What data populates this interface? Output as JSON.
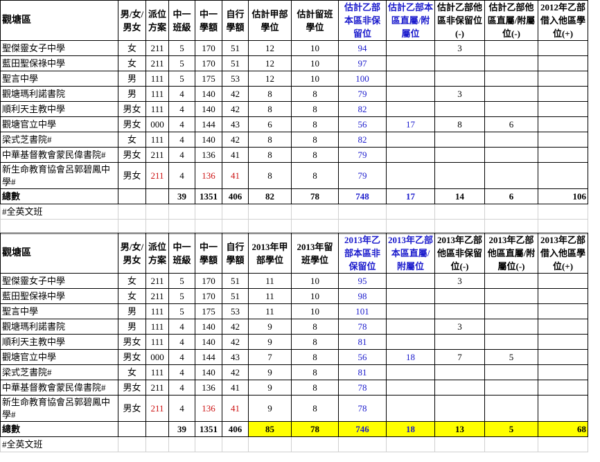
{
  "colors": {
    "blue": "#1a1acc",
    "red": "#cc1111",
    "highlight": "#ffff00"
  },
  "tables": [
    {
      "headers": [
        "觀塘區",
        "男/女/男女",
        "派位方案",
        "中一班級",
        "中一學額",
        "自行學額",
        "估計甲部學位",
        "估計留班學位",
        "估計乙部本區非保留位",
        "估計乙部本區直屬/附屬位",
        "估計乙部他區非保留位(-)",
        "估計乙部他區直屬/附屬位(-)",
        "2012年乙部借入他區學位(+)"
      ],
      "rows": [
        [
          "聖傑靈女子中學",
          "女",
          "211",
          "5",
          "170",
          "51",
          "12",
          "10",
          "94",
          "",
          "3",
          "",
          ""
        ],
        [
          "藍田聖保祿中學",
          "女",
          "211",
          "5",
          "170",
          "51",
          "12",
          "10",
          "97",
          "",
          "",
          "",
          ""
        ],
        [
          "聖言中學",
          "男",
          "111",
          "5",
          "175",
          "53",
          "12",
          "10",
          "100",
          "",
          "",
          "",
          ""
        ],
        [
          "觀塘瑪利諾書院",
          "男",
          "111",
          "4",
          "140",
          "42",
          "8",
          "8",
          "79",
          "",
          "3",
          "",
          ""
        ],
        [
          "順利天主教中學",
          "男女",
          "111",
          "4",
          "140",
          "42",
          "8",
          "8",
          "82",
          "",
          "",
          "",
          ""
        ],
        [
          "觀塘官立中學",
          "男女",
          "000",
          "4",
          "144",
          "43",
          "6",
          "8",
          "56",
          "17",
          "8",
          "6",
          ""
        ],
        [
          "梁式芝書院#",
          "女",
          "111",
          "4",
          "140",
          "42",
          "8",
          "8",
          "82",
          "",
          "",
          "",
          ""
        ],
        [
          "中華基督教會蒙民偉書院#",
          "男女",
          "211",
          "4",
          "136",
          "41",
          "8",
          "8",
          "79",
          "",
          "",
          "",
          ""
        ],
        [
          "新生命教育協會呂郭碧鳳中學#",
          "男女",
          "211",
          "4",
          "136",
          "41",
          "8",
          "8",
          "79",
          "",
          "",
          "",
          ""
        ]
      ],
      "totals": [
        "總數",
        "",
        "",
        "39",
        "1351",
        "406",
        "82",
        "78",
        "748",
        "17",
        "14",
        "6",
        "106"
      ],
      "note": "#全英文班"
    },
    {
      "headers": [
        "觀塘區",
        "男/女/男女",
        "派位方案",
        "中一班級",
        "中一學額",
        "自行學額",
        "2013年甲部學位",
        "2013年留班學位",
        "2013年乙部本區非保留位",
        "2013年乙部本區直屬/附屬位",
        "2013年乙部他區非保留位(-)",
        "2013年乙部他區直屬/附屬位(-)",
        "2013年乙部借入他區學位(+)"
      ],
      "rows": [
        [
          "聖傑靈女子中學",
          "女",
          "211",
          "5",
          "170",
          "51",
          "11",
          "10",
          "95",
          "",
          "3",
          "",
          ""
        ],
        [
          "藍田聖保祿中學",
          "女",
          "211",
          "5",
          "170",
          "51",
          "11",
          "10",
          "98",
          "",
          "",
          "",
          ""
        ],
        [
          "聖言中學",
          "男",
          "111",
          "5",
          "175",
          "53",
          "11",
          "10",
          "101",
          "",
          "",
          "",
          ""
        ],
        [
          "觀塘瑪利諾書院",
          "男",
          "111",
          "4",
          "140",
          "42",
          "9",
          "8",
          "78",
          "",
          "3",
          "",
          ""
        ],
        [
          "順利天主教中學",
          "男女",
          "111",
          "4",
          "140",
          "42",
          "9",
          "8",
          "81",
          "",
          "",
          "",
          ""
        ],
        [
          "觀塘官立中學",
          "男女",
          "000",
          "4",
          "144",
          "43",
          "7",
          "8",
          "56",
          "18",
          "7",
          "5",
          ""
        ],
        [
          "梁式芝書院#",
          "女",
          "111",
          "4",
          "140",
          "42",
          "9",
          "8",
          "81",
          "",
          "",
          "",
          ""
        ],
        [
          "中華基督教會蒙民偉書院#",
          "男女",
          "211",
          "4",
          "136",
          "41",
          "9",
          "8",
          "78",
          "",
          "",
          "",
          ""
        ],
        [
          "新生命教育協會呂郭碧鳳中學#",
          "男女",
          "211",
          "4",
          "136",
          "41",
          "9",
          "8",
          "78",
          "",
          "",
          "",
          ""
        ]
      ],
      "totals": [
        "總數",
        "",
        "",
        "39",
        "1351",
        "406",
        "85",
        "78",
        "746",
        "18",
        "13",
        "5",
        "68"
      ],
      "note": "#全英文班"
    }
  ]
}
